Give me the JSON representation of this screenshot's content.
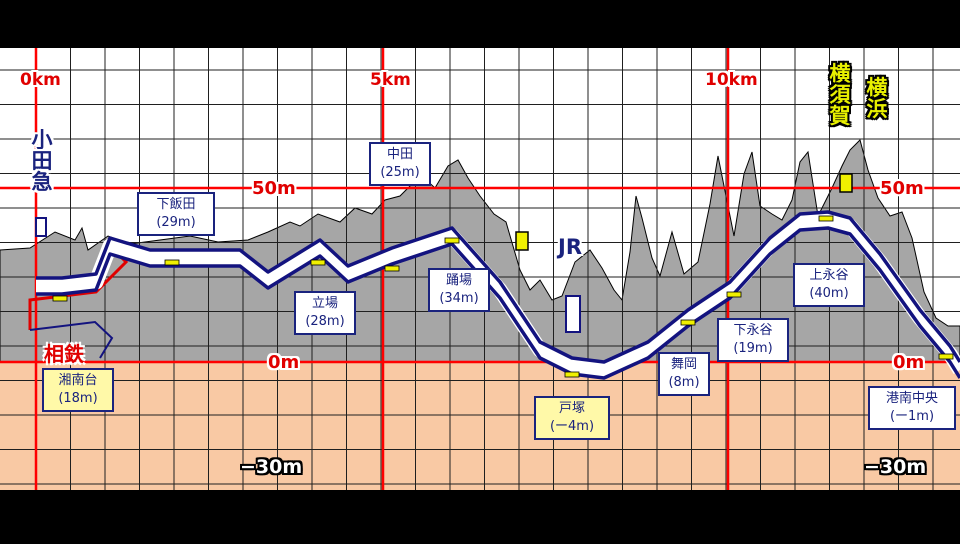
{
  "km_labels": [
    "0km",
    "5km",
    "10km"
  ],
  "elevation_labels": {
    "top_left": "50m",
    "top_right": "50m",
    "zero_left": "0m",
    "zero_right": "0m",
    "neg_left": "−30m",
    "neg_right": "−30m"
  },
  "other_lines": {
    "odakyu": "小田急",
    "sotetsu": "相鉄",
    "jr": "JR",
    "yokosuka": "横須賀",
    "yokohama": "横浜"
  },
  "stations": [
    {
      "name": "湘南台",
      "elev": "(18m)"
    },
    {
      "name": "下飯田",
      "elev": "(29m)"
    },
    {
      "name": "立場",
      "elev": "(28m)"
    },
    {
      "name": "中田",
      "elev": "(25m)"
    },
    {
      "name": "踊場",
      "elev": "(34m)"
    },
    {
      "name": "戸塚",
      "elev": "(ー4m)"
    },
    {
      "name": "舞岡",
      "elev": "(8m)"
    },
    {
      "name": "下永谷",
      "elev": "(19m)"
    },
    {
      "name": "上永谷",
      "elev": "(40m)"
    },
    {
      "name": "港南中央",
      "elev": "(ー1m)"
    }
  ],
  "colors": {
    "sky": "#ffffff",
    "ground": "#a6a6a6",
    "underground": "#f9c9a4",
    "grid": "#1f1f1f",
    "axis": "#ff0000",
    "track": "#13137f",
    "accent": "#e00000",
    "marker": "#f0f000"
  }
}
